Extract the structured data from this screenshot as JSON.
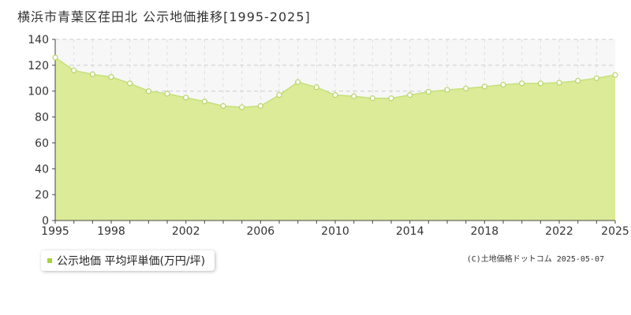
{
  "title": "横浜市青葉区荏田北 公示地価推移[1995-2025]",
  "credit": "(C)土地価格ドットコム 2025-05-07",
  "legend": {
    "label": "公示地価 平均坪単価(万円/坪)"
  },
  "colors": {
    "area_fill": "#dceb97",
    "line": "#c5e07a",
    "marker_stroke": "#b8d46a",
    "marker_fill": "#ffffff",
    "legend_swatch": "#a8d23c",
    "grid": "#cccccc",
    "axis": "#444444",
    "plot_bg": "#f7f7f7"
  },
  "chart_data": {
    "type": "area",
    "x": [
      1995,
      1996,
      1997,
      1998,
      1999,
      2000,
      2001,
      2002,
      2003,
      2004,
      2005,
      2006,
      2007,
      2008,
      2009,
      2010,
      2011,
      2012,
      2013,
      2014,
      2015,
      2016,
      2017,
      2018,
      2019,
      2020,
      2021,
      2022,
      2023,
      2024,
      2025
    ],
    "series": [
      {
        "name": "公示地価 平均坪単価(万円/坪)",
        "values": [
          126,
          116,
          113,
          111,
          106,
          100,
          98,
          95,
          92,
          88.5,
          87.5,
          88.5,
          97,
          107,
          103,
          97,
          96,
          94.5,
          94.5,
          97,
          99.5,
          101,
          102,
          103.5,
          105,
          106,
          106,
          106.5,
          108,
          110,
          112.5
        ]
      }
    ],
    "x_ticks": [
      "1995",
      "1998",
      "2002",
      "2006",
      "2010",
      "2014",
      "2018",
      "2022",
      "2025"
    ],
    "y_ticks": [
      "0",
      "20",
      "40",
      "60",
      "80",
      "100",
      "120",
      "140"
    ],
    "xlim": [
      1995,
      2025
    ],
    "ylim": [
      0,
      140
    ],
    "grid": true,
    "legend_position": "bottom-left"
  }
}
